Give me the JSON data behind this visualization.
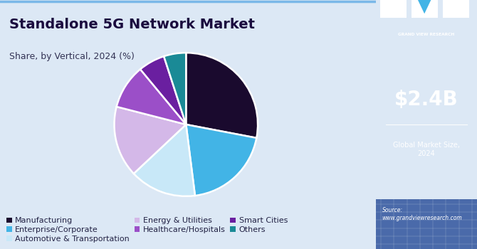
{
  "title": "Standalone 5G Network Market",
  "subtitle": "Share, by Vertical, 2024 (%)",
  "slices": [
    {
      "label": "Manufacturing",
      "value": 28,
      "color": "#1a0a2e"
    },
    {
      "label": "Enterprise/Corporate",
      "value": 20,
      "color": "#42b4e6"
    },
    {
      "label": "Automotive & Transportation",
      "value": 15,
      "color": "#c8e8f8"
    },
    {
      "label": "Energy & Utilities",
      "value": 16,
      "color": "#d4b8e8"
    },
    {
      "label": "Healthcare/Hospitals",
      "value": 10,
      "color": "#9b4fc8"
    },
    {
      "label": "Smart Cities",
      "value": 6,
      "color": "#6a1fa0"
    },
    {
      "label": "Others",
      "value": 5,
      "color": "#1a8a96"
    }
  ],
  "start_angle": 90,
  "counterclock": false,
  "market_size": "$2.4B",
  "market_label": "Global Market Size,\n2024",
  "source_text": "Source:\nwww.grandviewresearch.com",
  "sidebar_bg": "#3a1060",
  "sidebar_bottom_bg": "#4a6aaa",
  "main_bg": "#dce8f5",
  "top_border_color": "#7ab8e8",
  "title_color": "#1a0a3e",
  "subtitle_color": "#333355",
  "title_fontsize": 14,
  "subtitle_fontsize": 9,
  "legend_fontsize": 8
}
